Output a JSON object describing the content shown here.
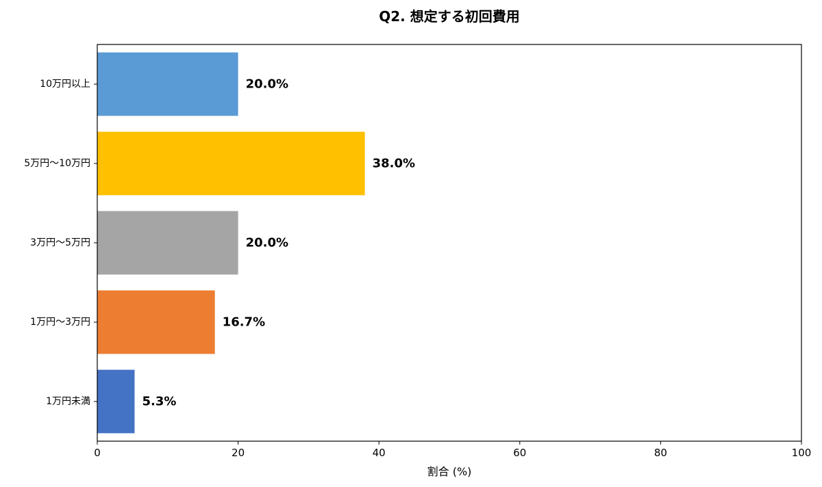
{
  "chart_data": {
    "type": "bar",
    "orientation": "horizontal",
    "title": "Q2. 想定する初回費用",
    "xlabel": "割合 (%)",
    "ylabel": "",
    "xlim": [
      0,
      100
    ],
    "xticks": [
      0,
      20,
      40,
      60,
      80,
      100
    ],
    "grid": false,
    "categories": [
      "10万円以上",
      "5万円〜10万円",
      "3万円〜5万円",
      "1万円〜3万円",
      "1万円未満"
    ],
    "values": [
      20.0,
      38.0,
      20.0,
      16.7,
      5.3
    ],
    "value_labels": [
      "20.0%",
      "38.0%",
      "20.0%",
      "16.7%",
      "5.3%"
    ],
    "colors": [
      "#5B9BD5",
      "#FFC000",
      "#A5A5A5",
      "#ED7D31",
      "#4472C4"
    ]
  }
}
